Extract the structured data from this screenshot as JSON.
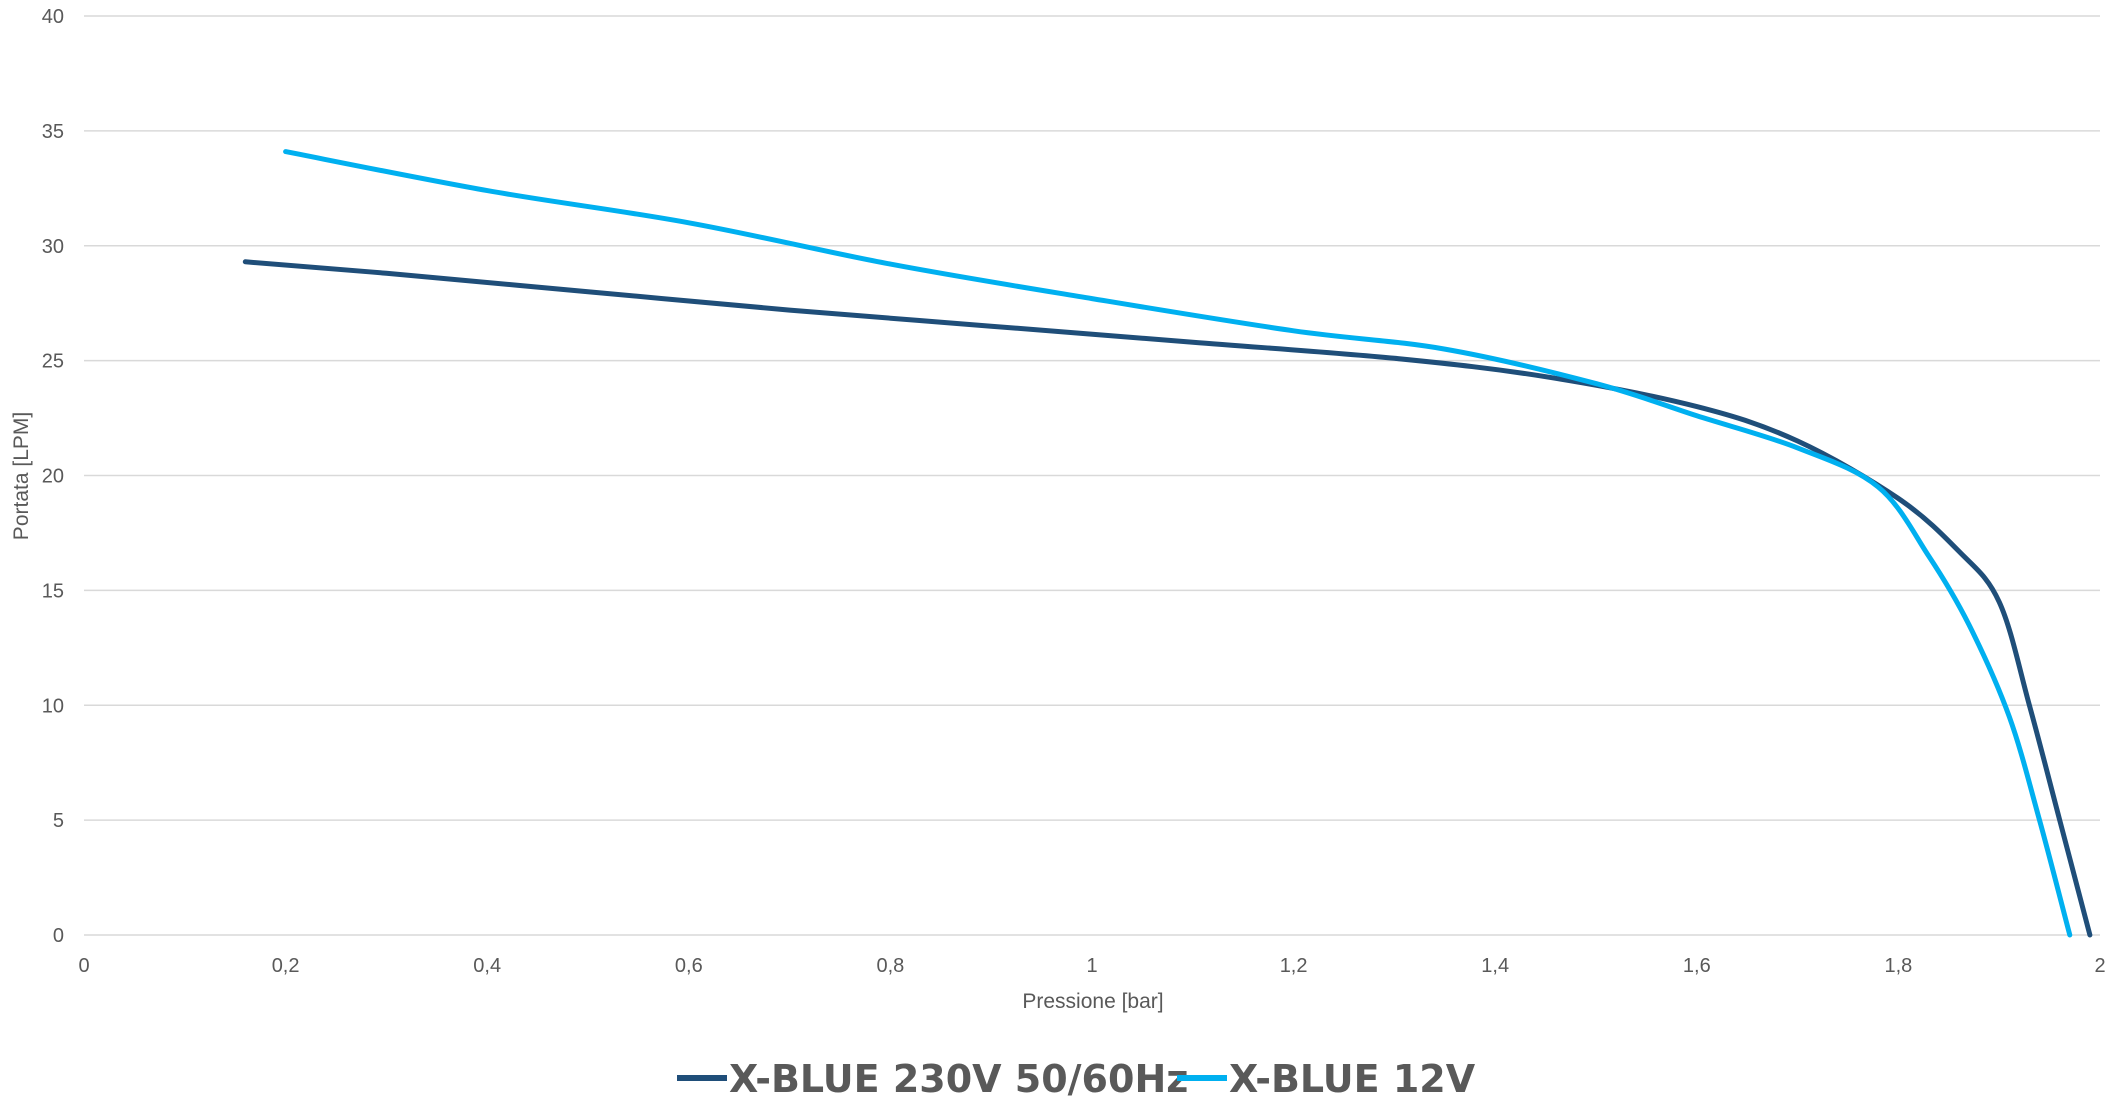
{
  "chart_data": {
    "type": "line",
    "title": "",
    "xlabel": "Pressione [bar]",
    "ylabel": "Portata [LPM]",
    "xlim": [
      0,
      2
    ],
    "ylim": [
      0,
      40
    ],
    "x_ticks": [
      0,
      0.2,
      0.4,
      0.6,
      0.8,
      1,
      1.2,
      1.4,
      1.6,
      1.8,
      2
    ],
    "x_tick_labels": [
      "0",
      "0,2",
      "0,4",
      "0,6",
      "0,8",
      "1",
      "1,2",
      "1,4",
      "1,6",
      "1,8",
      "2"
    ],
    "y_ticks": [
      0,
      5,
      10,
      15,
      20,
      25,
      30,
      35,
      40
    ],
    "y_tick_labels": [
      "0",
      "5",
      "10",
      "15",
      "20",
      "25",
      "30",
      "35",
      "40"
    ],
    "grid": "horizontal",
    "legend_position": "bottom",
    "series": [
      {
        "name": "X-BLUE 230V 50/60Hz",
        "color": "#1f4e79",
        "x": [
          0.16,
          0.3,
          0.5,
          0.7,
          0.9,
          1.1,
          1.3,
          1.45,
          1.6,
          1.7,
          1.8,
          1.86,
          1.9,
          1.93,
          1.96,
          1.99
        ],
        "y": [
          29.3,
          28.8,
          28.0,
          27.2,
          26.5,
          25.8,
          25.1,
          24.3,
          23.0,
          21.5,
          19.0,
          16.7,
          14.5,
          10.0,
          5.0,
          0
        ]
      },
      {
        "name": "X-BLUE 12V",
        "color": "#00b0f0",
        "x": [
          0.2,
          0.4,
          0.6,
          0.8,
          1.0,
          1.2,
          1.35,
          1.5,
          1.6,
          1.7,
          1.78,
          1.83,
          1.87,
          1.91,
          1.94,
          1.97
        ],
        "y": [
          34.1,
          32.4,
          31.0,
          29.2,
          27.7,
          26.3,
          25.5,
          24.0,
          22.6,
          21.2,
          19.5,
          16.5,
          13.5,
          9.5,
          5.0,
          0
        ]
      }
    ]
  }
}
